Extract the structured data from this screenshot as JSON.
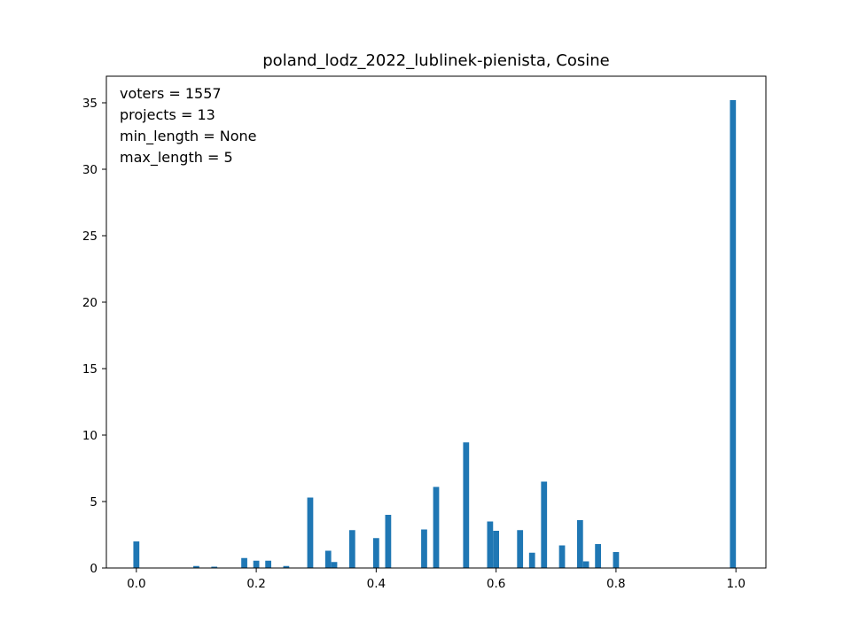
{
  "chart_data": {
    "type": "bar",
    "title": "poland_lodz_2022_lublinek-pienista, Cosine",
    "xlabel": "",
    "ylabel": "",
    "xlim": [
      -0.05,
      1.05
    ],
    "ylim": [
      0,
      37
    ],
    "x_ticks": [
      0.0,
      0.2,
      0.4,
      0.6,
      0.8,
      1.0
    ],
    "x_tick_labels": [
      "0.0",
      "0.2",
      "0.4",
      "0.6",
      "0.8",
      "1.0"
    ],
    "y_ticks": [
      0,
      5,
      10,
      15,
      20,
      25,
      30,
      35
    ],
    "y_tick_labels": [
      "0",
      "5",
      "10",
      "15",
      "20",
      "25",
      "30",
      "35"
    ],
    "bar_width": 0.01,
    "bar_color": "#1f77b4",
    "grid": false,
    "annotations": [
      "voters = 1557",
      "projects = 13",
      "min_length = None",
      "max_length = 5"
    ],
    "bars": [
      {
        "x": 0.0,
        "value": 2.0
      },
      {
        "x": 0.1,
        "value": 0.15
      },
      {
        "x": 0.13,
        "value": 0.1
      },
      {
        "x": 0.18,
        "value": 0.75
      },
      {
        "x": 0.2,
        "value": 0.55
      },
      {
        "x": 0.22,
        "value": 0.55
      },
      {
        "x": 0.25,
        "value": 0.15
      },
      {
        "x": 0.29,
        "value": 5.3
      },
      {
        "x": 0.32,
        "value": 1.3
      },
      {
        "x": 0.33,
        "value": 0.45
      },
      {
        "x": 0.36,
        "value": 2.85
      },
      {
        "x": 0.4,
        "value": 2.25
      },
      {
        "x": 0.42,
        "value": 4.0
      },
      {
        "x": 0.48,
        "value": 2.9
      },
      {
        "x": 0.5,
        "value": 6.1
      },
      {
        "x": 0.55,
        "value": 9.45
      },
      {
        "x": 0.59,
        "value": 3.5
      },
      {
        "x": 0.6,
        "value": 2.8
      },
      {
        "x": 0.64,
        "value": 2.85
      },
      {
        "x": 0.66,
        "value": 1.15
      },
      {
        "x": 0.68,
        "value": 6.5
      },
      {
        "x": 0.71,
        "value": 1.7
      },
      {
        "x": 0.74,
        "value": 3.6
      },
      {
        "x": 0.75,
        "value": 0.5
      },
      {
        "x": 0.77,
        "value": 1.8
      },
      {
        "x": 0.8,
        "value": 1.2
      },
      {
        "x": 0.995,
        "value": 35.2
      }
    ]
  }
}
